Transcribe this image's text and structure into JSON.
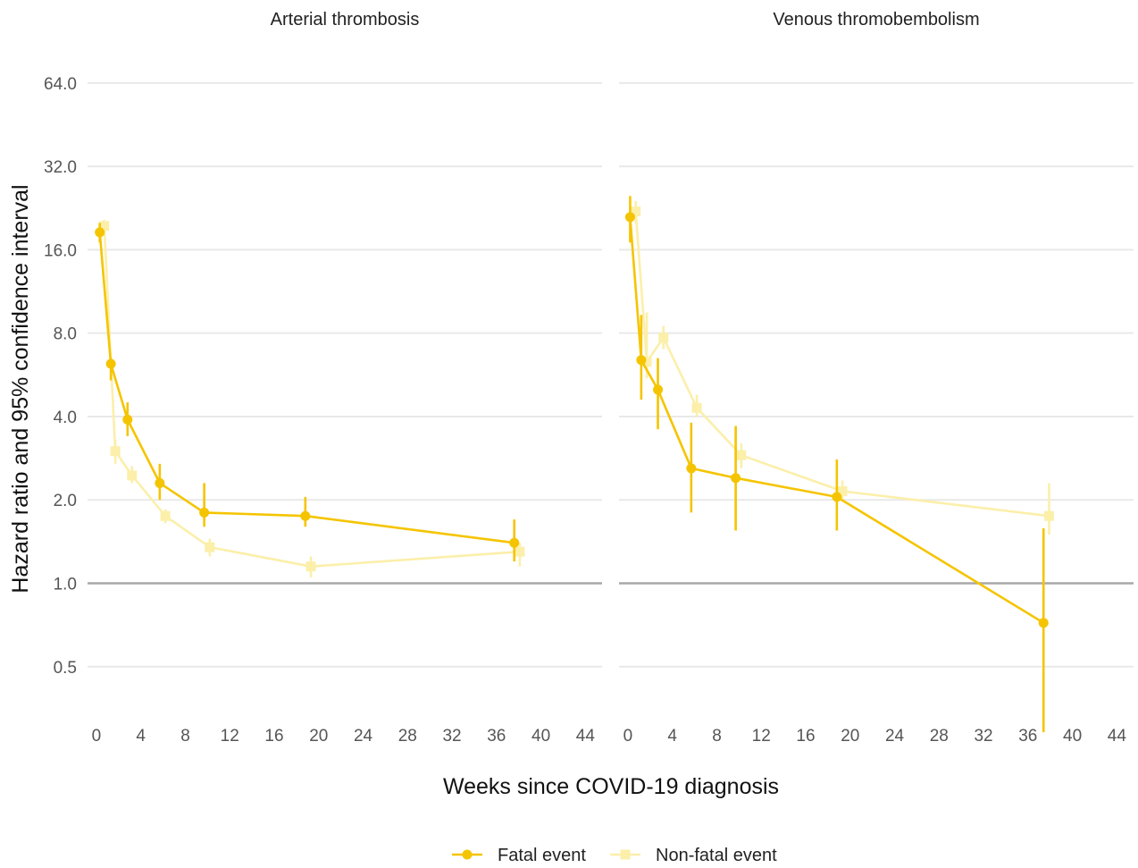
{
  "chart_data": {
    "type": "line",
    "facets": [
      "Arterial thrombosis",
      "Venous thromobembolism"
    ],
    "xlabel": "Weeks since COVID-19 diagnosis",
    "ylabel": "Hazard ratio and 95% confidence interval",
    "x_ticks": [
      0,
      4,
      8,
      12,
      16,
      20,
      24,
      28,
      32,
      36,
      40,
      44
    ],
    "x_tick_labels": [
      "0",
      "4",
      "8",
      "12",
      "16",
      "20",
      "24",
      "28",
      "32",
      "36",
      "40",
      "44"
    ],
    "xlim": [
      -0.8,
      45.5
    ],
    "y_scale": "log2",
    "y_ticks": [
      0.5,
      1.0,
      2.0,
      4.0,
      8.0,
      16.0,
      32.0,
      64.0
    ],
    "y_tick_labels": [
      "0.5",
      "1.0",
      "2.0",
      "4.0",
      "8.0",
      "16.0",
      "32.0",
      "64.0"
    ],
    "ylim": [
      0.36,
      88
    ],
    "reference_line": 1.0,
    "grid": true,
    "legend_position": "bottom",
    "colors": {
      "fatal": "#F5C400",
      "nonfatal": "#FBEFAA",
      "grid": "#E9E9E9",
      "reference": "#A8A8A8"
    },
    "series": [
      {
        "name": "Fatal event",
        "color": "#F5C400",
        "marker": "circle",
        "panels": [
          {
            "x": [
              0.3,
              1.3,
              2.8,
              5.7,
              9.7,
              18.8,
              37.6
            ],
            "hr": [
              18.5,
              6.2,
              3.9,
              2.3,
              1.8,
              1.75,
              1.4
            ],
            "lo": [
              17.0,
              5.4,
              3.4,
              2.0,
              1.6,
              1.6,
              1.2
            ],
            "hi": [
              20.0,
              6.5,
              4.5,
              2.7,
              2.3,
              2.05,
              1.7
            ]
          },
          {
            "x": [
              0.2,
              1.2,
              2.7,
              5.7,
              9.7,
              18.8,
              37.4
            ],
            "hr": [
              21.0,
              6.4,
              5.0,
              2.6,
              2.4,
              2.05,
              0.72
            ],
            "lo": [
              17.0,
              4.6,
              3.6,
              1.8,
              1.55,
              1.55,
              0.29
            ],
            "hi": [
              25.0,
              9.3,
              6.5,
              3.8,
              3.7,
              2.8,
              1.58
            ]
          }
        ]
      },
      {
        "name": "Non-fatal event",
        "color": "#FBEFAA",
        "marker": "square",
        "panels": [
          {
            "x": [
              0.7,
              1.7,
              3.2,
              6.2,
              10.2,
              19.3,
              38.1
            ],
            "hr": [
              19.5,
              3.0,
              2.45,
              1.75,
              1.35,
              1.15,
              1.3
            ],
            "lo": [
              18.5,
              2.7,
              2.3,
              1.65,
              1.25,
              1.05,
              1.15
            ],
            "hi": [
              20.5,
              3.3,
              2.65,
              1.85,
              1.45,
              1.25,
              1.4
            ]
          },
          {
            "x": [
              0.7,
              1.7,
              3.2,
              6.2,
              10.2,
              19.3,
              37.9
            ],
            "hr": [
              22.0,
              6.3,
              7.7,
              4.3,
              2.9,
              2.15,
              1.75
            ],
            "lo": [
              20.0,
              5.5,
              7.0,
              4.0,
              2.6,
              2.0,
              1.5
            ],
            "hi": [
              24.0,
              9.5,
              8.5,
              4.8,
              3.2,
              2.35,
              2.3
            ]
          }
        ]
      }
    ]
  }
}
